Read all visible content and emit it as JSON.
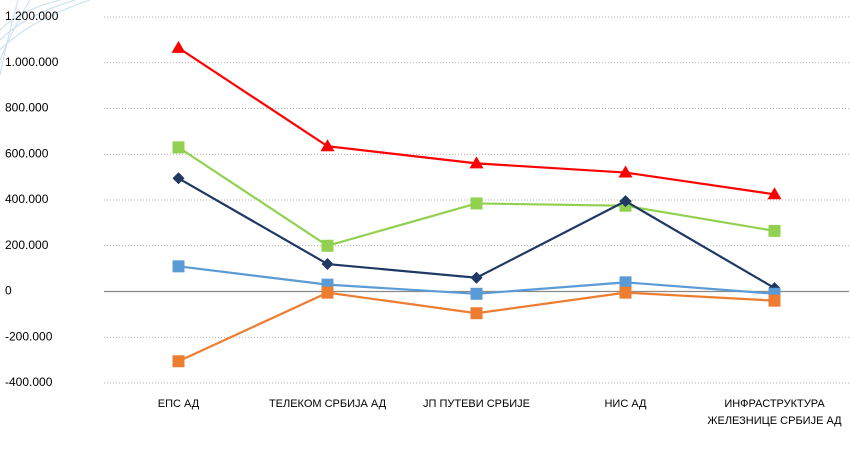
{
  "chart_data": {
    "type": "line",
    "categories": [
      "ЕПС АД",
      "ТЕЛЕКОМ СРБИЈА АД",
      "ЈП ПУТЕВИ СРБИЈЕ",
      "НИС АД",
      "ИНФРАСТРУКТУРА ЖЕЛЕЗНИЦЕ СРБИЈЕ АД"
    ],
    "series": [
      {
        "color": "#ff0000",
        "marker": "triangle",
        "values": [
          1065000,
          635000,
          560000,
          520000,
          425000
        ]
      },
      {
        "color": "#92d050",
        "marker": "square",
        "values": [
          630000,
          200000,
          385000,
          375000,
          265000
        ]
      },
      {
        "color": "#1f3864",
        "marker": "diamond",
        "values": [
          495000,
          120000,
          60000,
          395000,
          15000
        ]
      },
      {
        "color": "#5b9bd5",
        "marker": "square",
        "values": [
          110000,
          30000,
          -10000,
          40000,
          -10000
        ]
      },
      {
        "color": "#ed7d31",
        "marker": "square",
        "values": [
          -305000,
          -5000,
          -95000,
          -5000,
          -40000
        ]
      }
    ],
    "ylim": [
      -400000,
      1200000
    ],
    "yticks": [
      {
        "value": -400000,
        "label": "-400.000"
      },
      {
        "value": -200000,
        "label": "-200.000"
      },
      0,
      {
        "value": 200000,
        "label": "200.000"
      },
      {
        "value": 400000,
        "label": "400.000"
      },
      {
        "value": 600000,
        "label": "600.000"
      },
      {
        "value": 800000,
        "label": "800.000"
      },
      {
        "value": 1000000,
        "label": "1.000.000"
      },
      {
        "value": 1200000,
        "label": "1.200.000"
      }
    ],
    "grid": true
  }
}
